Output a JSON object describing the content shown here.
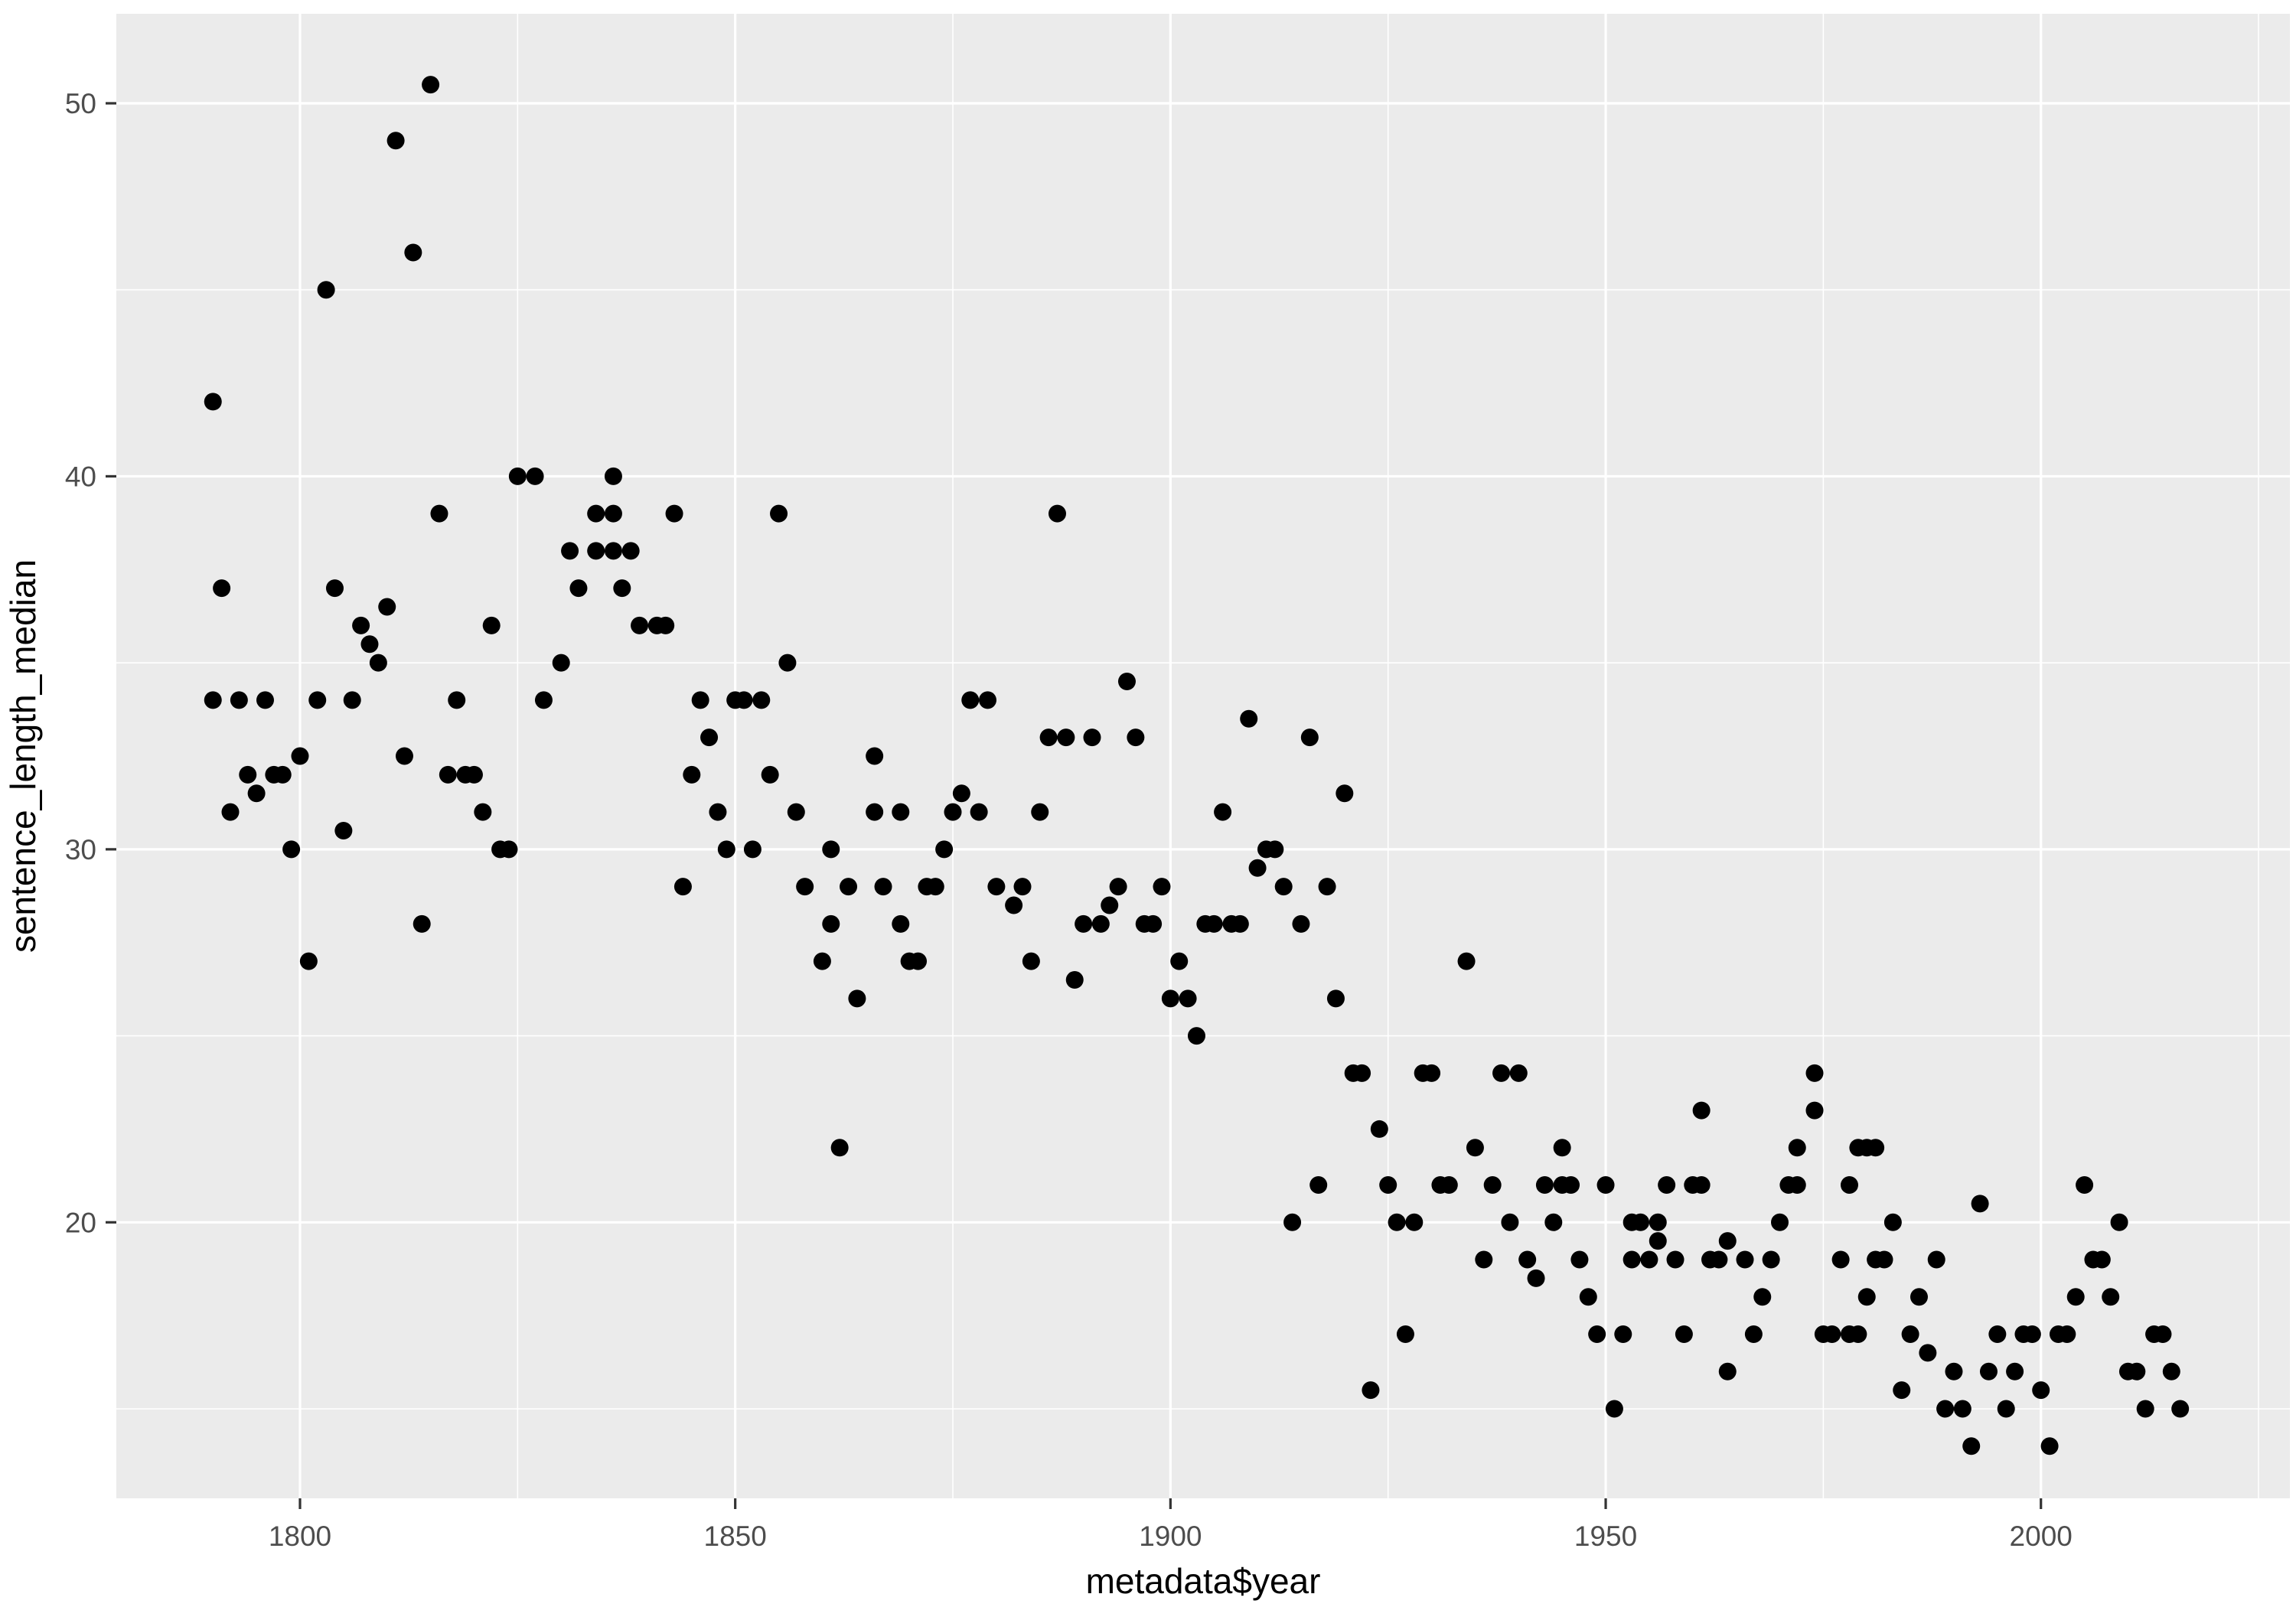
{
  "figure": {
    "kind": "ggplot2-scatterplot",
    "background_color": "#FFFFFF",
    "panel_background_color": "#EBEBEB",
    "gridline_color": "#FFFFFF",
    "tick_mark_color": "#333333",
    "tick_label_color": "#4D4D4D",
    "point_color": "#000000"
  },
  "chart_data": {
    "type": "scatter",
    "title": "",
    "xlabel": "metadata$year",
    "ylabel": "sentence_length_median",
    "legend_position": "none",
    "grid": "major white 3px, minor white 1.5px on gray panel",
    "x_major_ticks": [
      1800,
      1850,
      1900,
      1950,
      2000
    ],
    "x_tick_labels": [
      "1800",
      "1850",
      "1900",
      "1950",
      "2000"
    ],
    "x_minor_ticks": [
      1825,
      1875,
      1925,
      1975,
      2025
    ],
    "y_major_ticks": [
      20,
      30,
      40,
      50
    ],
    "y_tick_labels": [
      "20",
      "30",
      "40",
      "50"
    ],
    "y_minor_ticks": [
      15,
      25,
      35,
      45
    ],
    "xlim": [
      1778.9,
      2028.6
    ],
    "ylim": [
      12.6,
      52.4
    ],
    "point_radius_px": 11.5,
    "points": [
      [
        1790,
        42
      ],
      [
        1790,
        34
      ],
      [
        1791,
        37
      ],
      [
        1792,
        31
      ],
      [
        1793,
        34
      ],
      [
        1794,
        32
      ],
      [
        1795,
        31.5
      ],
      [
        1796,
        34
      ],
      [
        1797,
        32
      ],
      [
        1798,
        32
      ],
      [
        1799,
        30
      ],
      [
        1800,
        32.5
      ],
      [
        1801,
        27
      ],
      [
        1802,
        34
      ],
      [
        1803,
        45
      ],
      [
        1804,
        37
      ],
      [
        1805,
        30.5
      ],
      [
        1806,
        34
      ],
      [
        1807,
        36
      ],
      [
        1808,
        35.5
      ],
      [
        1809,
        35
      ],
      [
        1810,
        36.5
      ],
      [
        1811,
        49
      ],
      [
        1812,
        32.5
      ],
      [
        1813,
        46
      ],
      [
        1814,
        28
      ],
      [
        1815,
        50.5
      ],
      [
        1816,
        39
      ],
      [
        1817,
        32
      ],
      [
        1818,
        34
      ],
      [
        1819,
        32
      ],
      [
        1820,
        32
      ],
      [
        1821,
        31
      ],
      [
        1822,
        36
      ],
      [
        1823,
        30
      ],
      [
        1824,
        30
      ],
      [
        1825,
        40
      ],
      [
        1827,
        40
      ],
      [
        1828,
        34
      ],
      [
        1830,
        35
      ],
      [
        1831,
        38
      ],
      [
        1832,
        37
      ],
      [
        1834,
        39
      ],
      [
        1834,
        38
      ],
      [
        1836,
        39
      ],
      [
        1836,
        38
      ],
      [
        1836,
        40
      ],
      [
        1837,
        37
      ],
      [
        1838,
        38
      ],
      [
        1839,
        36
      ],
      [
        1841,
        36
      ],
      [
        1842,
        36
      ],
      [
        1843,
        39
      ],
      [
        1844,
        29
      ],
      [
        1845,
        32
      ],
      [
        1846,
        34
      ],
      [
        1847,
        33
      ],
      [
        1848,
        31
      ],
      [
        1849,
        30
      ],
      [
        1850,
        34
      ],
      [
        1851,
        34
      ],
      [
        1852,
        30
      ],
      [
        1853,
        34
      ],
      [
        1854,
        32
      ],
      [
        1855,
        39
      ],
      [
        1856,
        35
      ],
      [
        1857,
        31
      ],
      [
        1858,
        29
      ],
      [
        1860,
        27
      ],
      [
        1861,
        30
      ],
      [
        1861,
        28
      ],
      [
        1862,
        22
      ],
      [
        1863,
        29
      ],
      [
        1864,
        26
      ],
      [
        1866,
        32.5
      ],
      [
        1866,
        31
      ],
      [
        1867,
        29
      ],
      [
        1869,
        31
      ],
      [
        1869,
        28
      ],
      [
        1870,
        27
      ],
      [
        1871,
        27
      ],
      [
        1872,
        29
      ],
      [
        1873,
        29
      ],
      [
        1874,
        30
      ],
      [
        1875,
        31
      ],
      [
        1876,
        31.5
      ],
      [
        1877,
        34
      ],
      [
        1878,
        31
      ],
      [
        1879,
        34
      ],
      [
        1880,
        29
      ],
      [
        1882,
        28.5
      ],
      [
        1883,
        29
      ],
      [
        1884,
        27
      ],
      [
        1885,
        31
      ],
      [
        1886,
        33
      ],
      [
        1887,
        39
      ],
      [
        1888,
        33
      ],
      [
        1889,
        26.5
      ],
      [
        1890,
        28
      ],
      [
        1891,
        33
      ],
      [
        1892,
        28
      ],
      [
        1893,
        28.5
      ],
      [
        1894,
        29
      ],
      [
        1895,
        34.5
      ],
      [
        1896,
        33
      ],
      [
        1897,
        28
      ],
      [
        1898,
        28
      ],
      [
        1899,
        29
      ],
      [
        1900,
        26
      ],
      [
        1901,
        27
      ],
      [
        1902,
        26
      ],
      [
        1903,
        25
      ],
      [
        1904,
        28
      ],
      [
        1905,
        28
      ],
      [
        1906,
        31
      ],
      [
        1907,
        28
      ],
      [
        1908,
        28
      ],
      [
        1909,
        33.5
      ],
      [
        1910,
        29.5
      ],
      [
        1911,
        30
      ],
      [
        1912,
        30
      ],
      [
        1913,
        29
      ],
      [
        1914,
        20
      ],
      [
        1915,
        28
      ],
      [
        1916,
        33
      ],
      [
        1917,
        21
      ],
      [
        1918,
        29
      ],
      [
        1919,
        26
      ],
      [
        1920,
        31.5
      ],
      [
        1921,
        24
      ],
      [
        1922,
        24
      ],
      [
        1923,
        15.5
      ],
      [
        1924,
        22.5
      ],
      [
        1925,
        21
      ],
      [
        1926,
        20
      ],
      [
        1927,
        17
      ],
      [
        1928,
        20
      ],
      [
        1929,
        24
      ],
      [
        1930,
        24
      ],
      [
        1931,
        21
      ],
      [
        1932,
        21
      ],
      [
        1934,
        27
      ],
      [
        1935,
        22
      ],
      [
        1936,
        19
      ],
      [
        1937,
        21
      ],
      [
        1938,
        24
      ],
      [
        1939,
        20
      ],
      [
        1940,
        24
      ],
      [
        1941,
        19
      ],
      [
        1942,
        18.5
      ],
      [
        1943,
        21
      ],
      [
        1944,
        20
      ],
      [
        1945,
        22
      ],
      [
        1945,
        21
      ],
      [
        1946,
        21
      ],
      [
        1947,
        19
      ],
      [
        1948,
        18
      ],
      [
        1949,
        17
      ],
      [
        1950,
        21
      ],
      [
        1951,
        15
      ],
      [
        1952,
        17
      ],
      [
        1953,
        20
      ],
      [
        1953,
        19
      ],
      [
        1954,
        20
      ],
      [
        1955,
        19
      ],
      [
        1956,
        20
      ],
      [
        1956,
        19.5
      ],
      [
        1957,
        21
      ],
      [
        1958,
        19
      ],
      [
        1959,
        17
      ],
      [
        1960,
        21
      ],
      [
        1961,
        21
      ],
      [
        1961,
        23
      ],
      [
        1962,
        19
      ],
      [
        1963,
        19
      ],
      [
        1964,
        16
      ],
      [
        1964,
        19.5
      ],
      [
        1966,
        19
      ],
      [
        1967,
        17
      ],
      [
        1968,
        18
      ],
      [
        1969,
        19
      ],
      [
        1970,
        20
      ],
      [
        1971,
        21
      ],
      [
        1972,
        21
      ],
      [
        1972,
        22
      ],
      [
        1974,
        24
      ],
      [
        1974,
        23
      ],
      [
        1975,
        17
      ],
      [
        1976,
        17
      ],
      [
        1977,
        19
      ],
      [
        1978,
        21
      ],
      [
        1978,
        17
      ],
      [
        1979,
        22
      ],
      [
        1979,
        17
      ],
      [
        1980,
        22
      ],
      [
        1980,
        18
      ],
      [
        1981,
        22
      ],
      [
        1981,
        19
      ],
      [
        1982,
        19
      ],
      [
        1983,
        20
      ],
      [
        1984,
        15.5
      ],
      [
        1985,
        17
      ],
      [
        1986,
        18
      ],
      [
        1987,
        16.5
      ],
      [
        1988,
        19
      ],
      [
        1989,
        15
      ],
      [
        1990,
        16
      ],
      [
        1991,
        15
      ],
      [
        1992,
        14
      ],
      [
        1993,
        20.5
      ],
      [
        1994,
        16
      ],
      [
        1995,
        17
      ],
      [
        1996,
        15
      ],
      [
        1997,
        16
      ],
      [
        1998,
        17
      ],
      [
        1999,
        17
      ],
      [
        2000,
        15.5
      ],
      [
        2001,
        14
      ],
      [
        2002,
        17
      ],
      [
        2003,
        17
      ],
      [
        2004,
        18
      ],
      [
        2005,
        21
      ],
      [
        2006,
        19
      ],
      [
        2007,
        19
      ],
      [
        2008,
        18
      ],
      [
        2009,
        20
      ],
      [
        2010,
        16
      ],
      [
        2011,
        16
      ],
      [
        2012,
        15
      ],
      [
        2013,
        17
      ],
      [
        2014,
        17
      ],
      [
        2015,
        16
      ],
      [
        2016,
        15
      ]
    ]
  }
}
